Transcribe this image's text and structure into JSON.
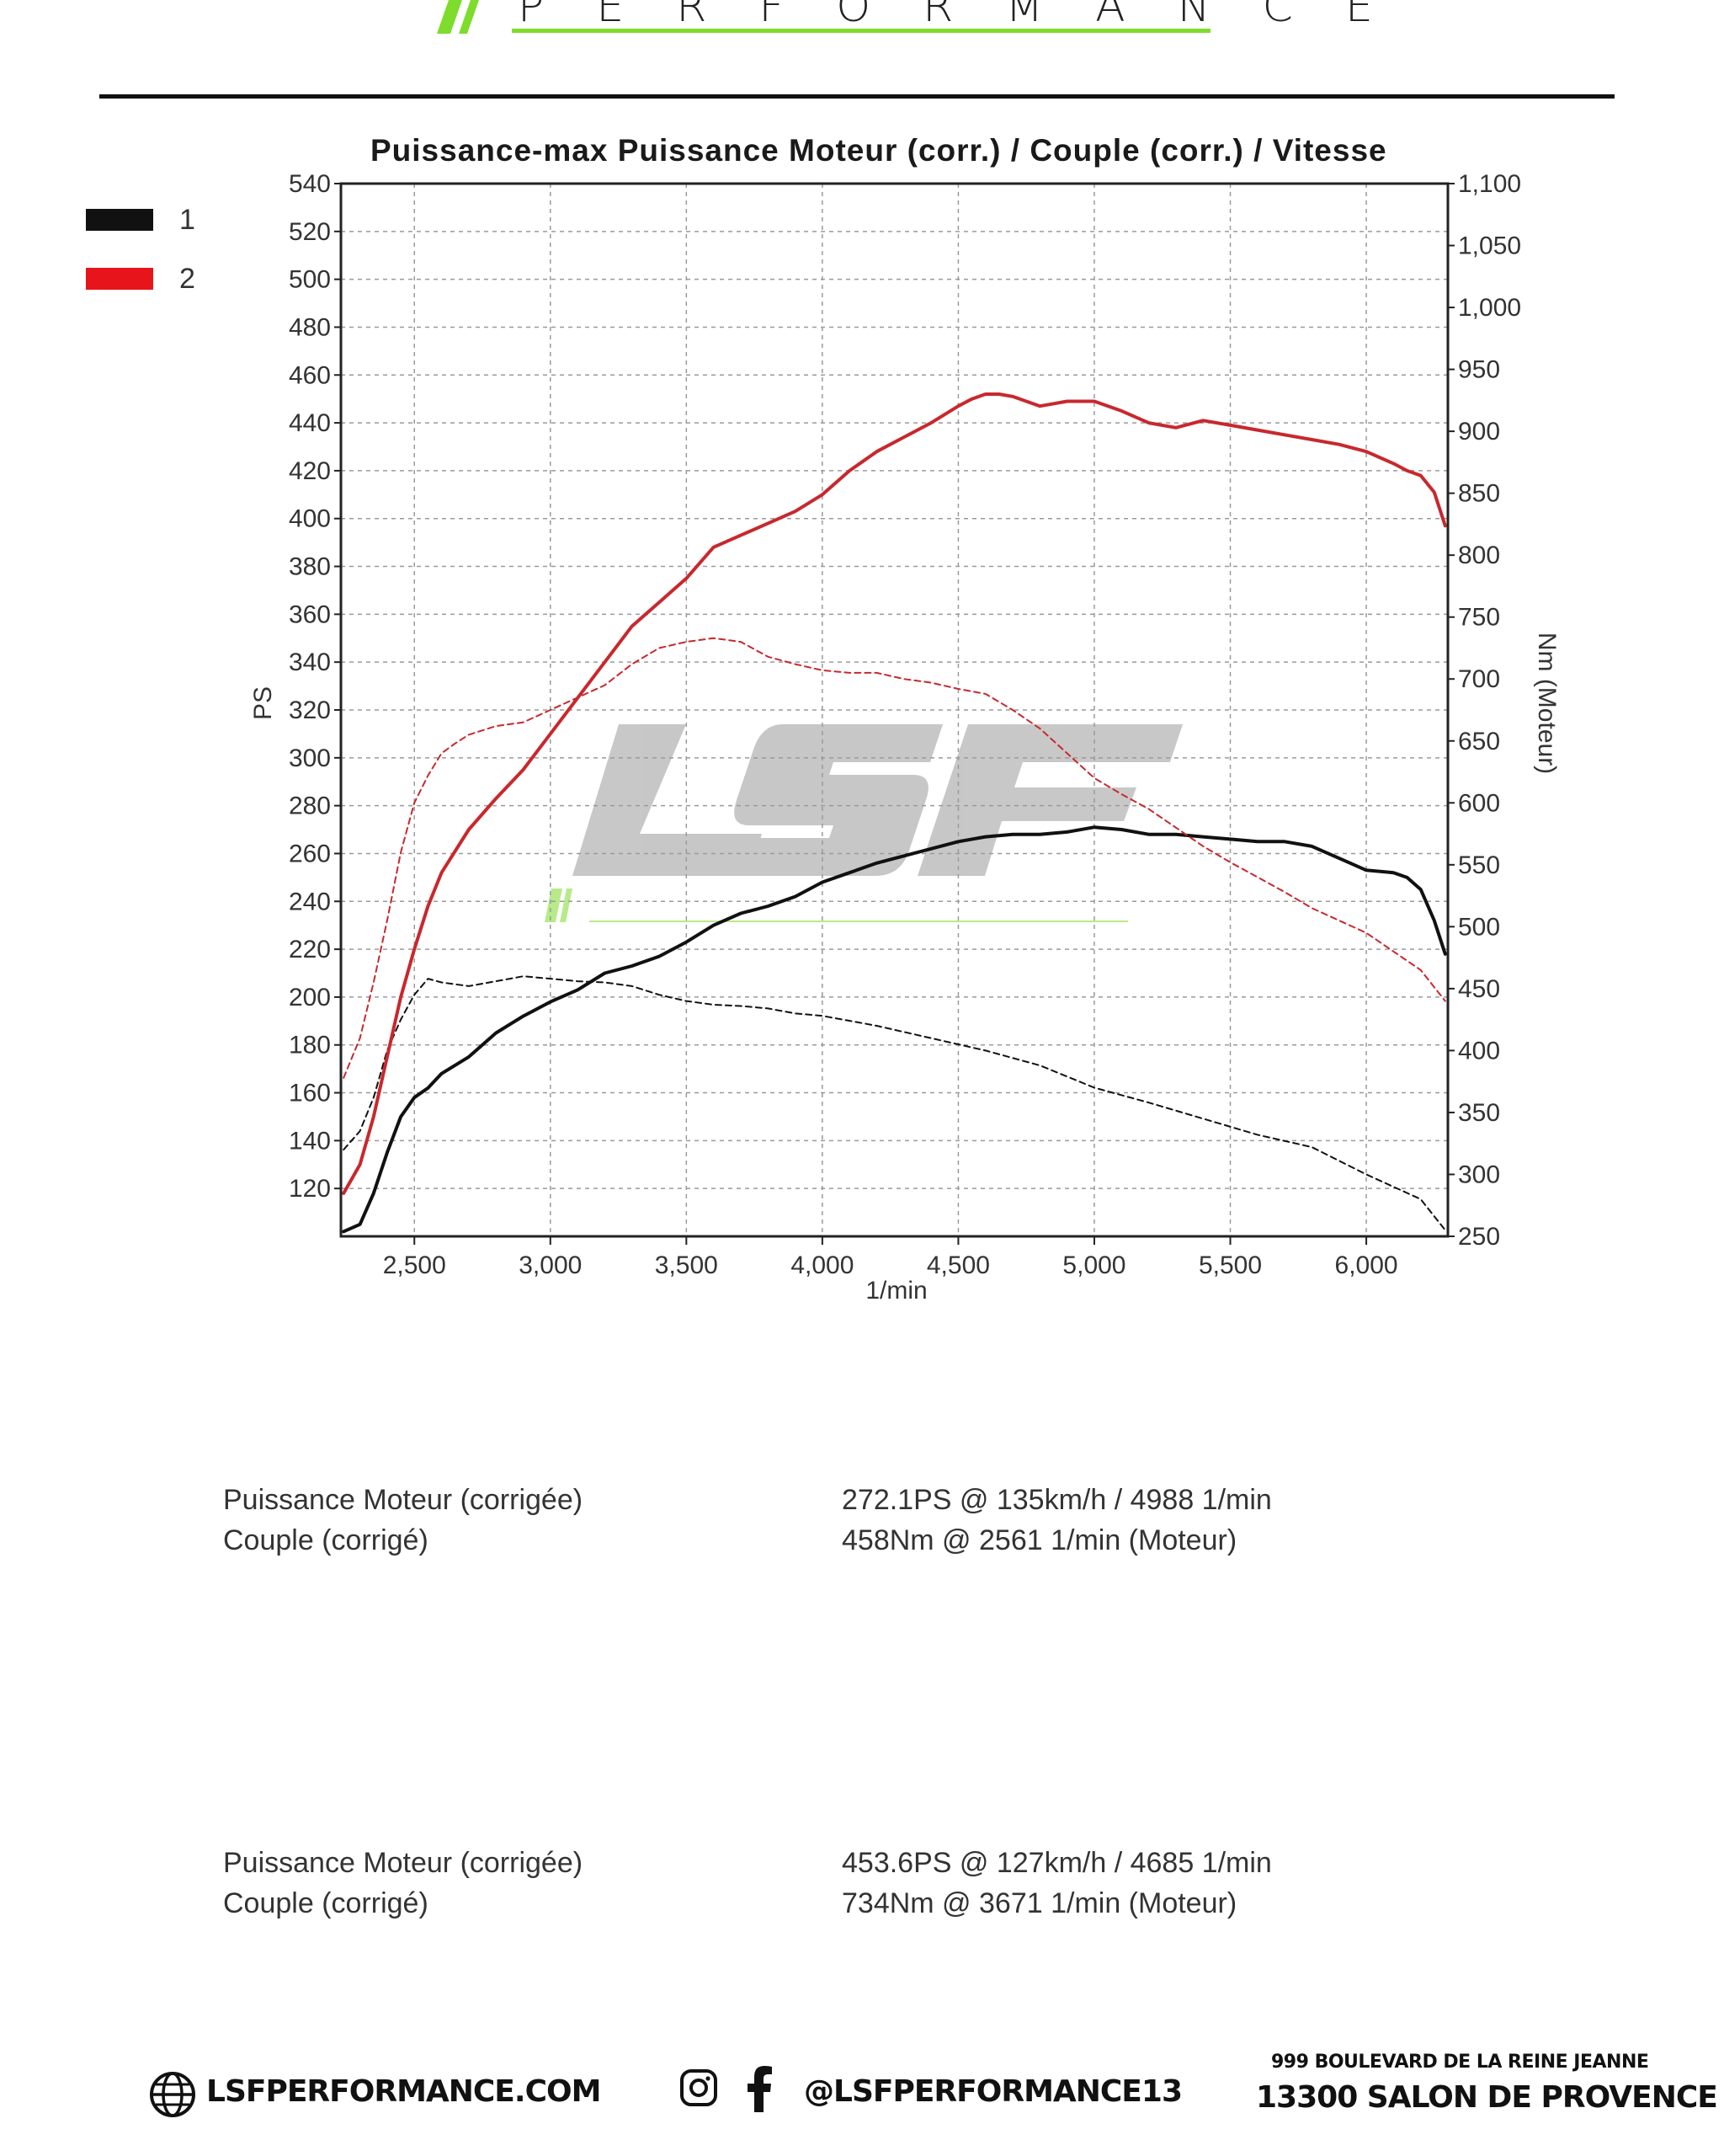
{
  "header": {
    "brand_word": "PERFORMANCE",
    "accent_color": "#7ddc2c"
  },
  "chart_data": {
    "type": "line",
    "title": "Puissance-max Puissance Moteur (corr.) / Couple (corr.) / Vitesse",
    "xlabel": "1/min",
    "ylabel_left": "PS",
    "ylabel_right": "Nm (Moteur)",
    "xlim": [
      2230,
      6300
    ],
    "ylim_left": [
      100,
      540
    ],
    "ylim_right": [
      250,
      1100
    ],
    "x_ticks": [
      "2,500",
      "3,000",
      "3,500",
      "4,000",
      "4,500",
      "5,000",
      "5,500",
      "6,000"
    ],
    "y_ticks_left": [
      "540",
      "520",
      "500",
      "480",
      "460",
      "440",
      "420",
      "400",
      "380",
      "360",
      "340",
      "320",
      "300",
      "280",
      "260",
      "240",
      "220",
      "200",
      "180",
      "160",
      "140",
      "120"
    ],
    "y_ticks_right": [
      "1,100",
      "1,050",
      "1,000",
      "950",
      "900",
      "850",
      "800",
      "750",
      "700",
      "650",
      "600",
      "550",
      "500",
      "450",
      "400",
      "350",
      "300",
      "250"
    ],
    "grid": true,
    "legend_position": "left",
    "legend": [
      {
        "label": "1",
        "color": "#111111"
      },
      {
        "label": "2",
        "color": "#e8141c"
      }
    ],
    "series": [
      {
        "name": "1",
        "kind": "power",
        "axis": "left",
        "color": "#111111",
        "x": [
          2240,
          2300,
          2350,
          2400,
          2450,
          2500,
          2550,
          2600,
          2700,
          2800,
          2900,
          3000,
          3100,
          3200,
          3300,
          3400,
          3500,
          3600,
          3700,
          3800,
          3900,
          4000,
          4100,
          4200,
          4300,
          4400,
          4500,
          4600,
          4700,
          4800,
          4900,
          5000,
          5100,
          5200,
          5300,
          5400,
          5500,
          5600,
          5700,
          5800,
          5900,
          6000,
          6100,
          6150,
          6200,
          6250,
          6290
        ],
        "values": [
          102,
          105,
          118,
          135,
          150,
          158,
          162,
          168,
          175,
          185,
          192,
          198,
          203,
          210,
          213,
          217,
          223,
          230,
          235,
          238,
          242,
          248,
          252,
          256,
          259,
          262,
          265,
          267,
          268,
          268,
          269,
          271,
          270,
          268,
          268,
          267,
          266,
          265,
          265,
          263,
          258,
          253,
          252,
          250,
          245,
          232,
          218
        ]
      },
      {
        "name": "1",
        "kind": "torque",
        "axis": "right",
        "color": "#111111",
        "dashed": true,
        "x": [
          2240,
          2300,
          2350,
          2400,
          2450,
          2500,
          2550,
          2600,
          2700,
          2800,
          2900,
          3000,
          3100,
          3200,
          3300,
          3400,
          3500,
          3600,
          3700,
          3800,
          3900,
          4000,
          4200,
          4400,
          4600,
          4800,
          5000,
          5200,
          5400,
          5600,
          5800,
          6000,
          6100,
          6200,
          6290
        ],
        "values": [
          320,
          335,
          362,
          400,
          425,
          445,
          458,
          455,
          452,
          456,
          460,
          458,
          456,
          455,
          452,
          445,
          440,
          437,
          436,
          434,
          430,
          428,
          420,
          410,
          400,
          388,
          370,
          358,
          345,
          332,
          322,
          300,
          290,
          280,
          255
        ]
      },
      {
        "name": "2",
        "kind": "power",
        "axis": "left",
        "color": "#c8282d",
        "x": [
          2240,
          2300,
          2350,
          2400,
          2450,
          2500,
          2550,
          2600,
          2700,
          2800,
          2900,
          3000,
          3100,
          3200,
          3300,
          3400,
          3500,
          3600,
          3700,
          3800,
          3900,
          4000,
          4100,
          4200,
          4300,
          4400,
          4500,
          4550,
          4600,
          4650,
          4700,
          4750,
          4800,
          4900,
          5000,
          5100,
          5200,
          5300,
          5400,
          5500,
          5600,
          5700,
          5800,
          5900,
          6000,
          6100,
          6150,
          6200,
          6250,
          6290
        ],
        "values": [
          118,
          130,
          150,
          175,
          200,
          220,
          238,
          252,
          270,
          283,
          295,
          310,
          325,
          340,
          355,
          365,
          375,
          388,
          393,
          398,
          403,
          410,
          420,
          428,
          434,
          440,
          447,
          450,
          452,
          452,
          451,
          449,
          447,
          449,
          449,
          445,
          440,
          438,
          441,
          439,
          437,
          435,
          433,
          431,
          428,
          423,
          420,
          418,
          411,
          397
        ]
      },
      {
        "name": "2",
        "kind": "torque",
        "axis": "right",
        "color": "#c8282d",
        "dashed": true,
        "x": [
          2240,
          2300,
          2350,
          2400,
          2450,
          2500,
          2550,
          2600,
          2650,
          2700,
          2800,
          2900,
          3000,
          3100,
          3200,
          3300,
          3400,
          3500,
          3600,
          3700,
          3800,
          3900,
          4000,
          4100,
          4200,
          4300,
          4400,
          4500,
          4600,
          4700,
          4800,
          4900,
          5000,
          5100,
          5200,
          5300,
          5400,
          5500,
          5600,
          5700,
          5800,
          5900,
          6000,
          6100,
          6200,
          6290
        ],
        "values": [
          378,
          410,
          455,
          505,
          560,
          600,
          622,
          640,
          648,
          655,
          662,
          665,
          675,
          685,
          695,
          712,
          725,
          730,
          733,
          730,
          718,
          712,
          707,
          705,
          705,
          700,
          697,
          692,
          688,
          675,
          660,
          640,
          620,
          607,
          595,
          580,
          565,
          552,
          540,
          528,
          515,
          505,
          495,
          480,
          465,
          440
        ]
      }
    ]
  },
  "results": [
    {
      "power_label": "Puissance Moteur (corrigée)",
      "power_value": "272.1PS @ 135km/h / 4988 1/min",
      "torque_label": "Couple (corrigé)",
      "torque_value": "458Nm @ 2561 1/min (Moteur)"
    },
    {
      "power_label": "Puissance Moteur (corrigée)",
      "power_value": "453.6PS @ 127km/h / 4685 1/min",
      "torque_label": "Couple (corrigé)",
      "torque_value": "734Nm @ 3671 1/min (Moteur)"
    }
  ],
  "footer": {
    "website": "LSFPERFORMANCE.COM",
    "social_handle": "@LSFPERFORMANCE13",
    "address_line1": "999 BOULEVARD DE LA REINE JEANNE",
    "address_line2": "13300 SALON DE PROVENCE",
    "website_icon": "globe-icon",
    "instagram_icon": "instagram-icon",
    "facebook_icon": "facebook-icon"
  }
}
